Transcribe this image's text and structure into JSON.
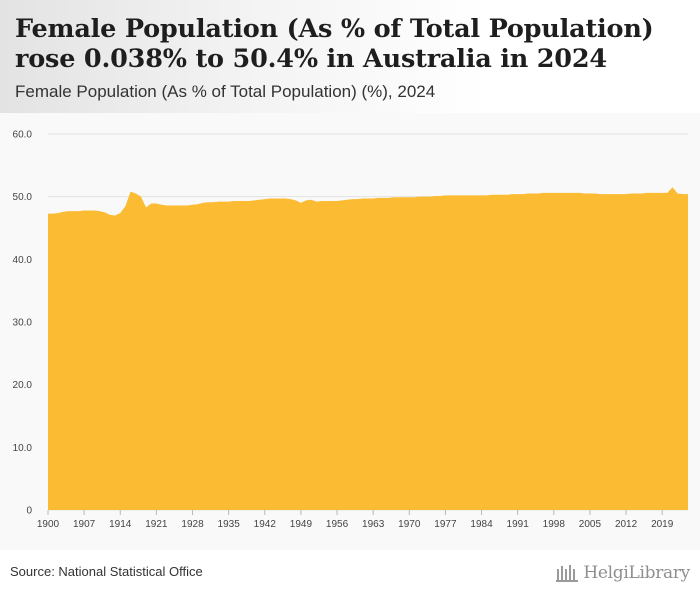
{
  "header": {
    "title": "Female Population (As % of Total Population) rose 0.038% to 50.4% in Australia in 2024",
    "subtitle": "Female Population (As % of Total Population) (%), 2024"
  },
  "footer": {
    "source": "Source: National Statistical Office",
    "logo_text": "HelgiLibrary"
  },
  "colors": {
    "area_fill": "#fbbb33",
    "gridline": "#e2e2e2"
  },
  "chart_data": {
    "type": "area",
    "title": "Female Population (As % of Total Population) (%), 2024",
    "xlabel": "",
    "ylabel": "",
    "ylim": [
      0,
      60
    ],
    "yticks": [
      0,
      10.0,
      20.0,
      30.0,
      40.0,
      50.0,
      60.0
    ],
    "ytick_labels": [
      "0",
      "10.0",
      "20.0",
      "30.0",
      "40.0",
      "50.0",
      "60.0"
    ],
    "xlim": [
      1900,
      2024
    ],
    "xticks": [
      1900,
      1907,
      1914,
      1921,
      1928,
      1935,
      1942,
      1949,
      1956,
      1963,
      1970,
      1977,
      1984,
      1991,
      1998,
      2005,
      2012,
      2019
    ],
    "grid": true,
    "series": [
      {
        "name": "Female Population (As % of Total Population)",
        "x": [
          1900,
          1901,
          1902,
          1903,
          1904,
          1905,
          1906,
          1907,
          1908,
          1909,
          1910,
          1911,
          1912,
          1913,
          1914,
          1915,
          1916,
          1917,
          1918,
          1919,
          1920,
          1921,
          1922,
          1923,
          1924,
          1925,
          1926,
          1927,
          1928,
          1929,
          1930,
          1931,
          1932,
          1933,
          1934,
          1935,
          1936,
          1937,
          1938,
          1939,
          1940,
          1941,
          1942,
          1943,
          1944,
          1945,
          1946,
          1947,
          1948,
          1949,
          1950,
          1951,
          1952,
          1953,
          1954,
          1955,
          1956,
          1957,
          1958,
          1959,
          1960,
          1961,
          1962,
          1963,
          1964,
          1965,
          1966,
          1967,
          1968,
          1969,
          1970,
          1971,
          1972,
          1973,
          1974,
          1975,
          1976,
          1977,
          1978,
          1979,
          1980,
          1981,
          1982,
          1983,
          1984,
          1985,
          1986,
          1987,
          1988,
          1989,
          1990,
          1991,
          1992,
          1993,
          1994,
          1995,
          1996,
          1997,
          1998,
          1999,
          2000,
          2001,
          2002,
          2003,
          2004,
          2005,
          2006,
          2007,
          2008,
          2009,
          2010,
          2011,
          2012,
          2013,
          2014,
          2015,
          2016,
          2017,
          2018,
          2019,
          2020,
          2021,
          2022,
          2023,
          2024
        ],
        "values": [
          47.3,
          47.3,
          47.4,
          47.6,
          47.7,
          47.7,
          47.7,
          47.8,
          47.8,
          47.8,
          47.7,
          47.5,
          47.1,
          47.0,
          47.4,
          48.5,
          50.8,
          50.5,
          50.0,
          48.3,
          48.9,
          48.9,
          48.7,
          48.6,
          48.6,
          48.6,
          48.6,
          48.6,
          48.7,
          48.8,
          49.0,
          49.1,
          49.1,
          49.2,
          49.2,
          49.2,
          49.3,
          49.3,
          49.3,
          49.3,
          49.4,
          49.5,
          49.6,
          49.7,
          49.7,
          49.7,
          49.7,
          49.6,
          49.4,
          49.0,
          49.4,
          49.5,
          49.2,
          49.3,
          49.3,
          49.3,
          49.3,
          49.4,
          49.5,
          49.6,
          49.6,
          49.7,
          49.7,
          49.7,
          49.8,
          49.8,
          49.8,
          49.9,
          49.9,
          49.9,
          49.9,
          49.9,
          50.0,
          50.0,
          50.0,
          50.1,
          50.1,
          50.2,
          50.2,
          50.2,
          50.2,
          50.2,
          50.2,
          50.2,
          50.2,
          50.2,
          50.3,
          50.3,
          50.3,
          50.3,
          50.4,
          50.4,
          50.4,
          50.5,
          50.5,
          50.5,
          50.6,
          50.6,
          50.6,
          50.6,
          50.6,
          50.6,
          50.6,
          50.6,
          50.5,
          50.5,
          50.5,
          50.4,
          50.4,
          50.4,
          50.4,
          50.4,
          50.4,
          50.5,
          50.5,
          50.5,
          50.6,
          50.6,
          50.6,
          50.6,
          50.6,
          51.5,
          50.5,
          50.4,
          50.4
        ]
      }
    ]
  }
}
